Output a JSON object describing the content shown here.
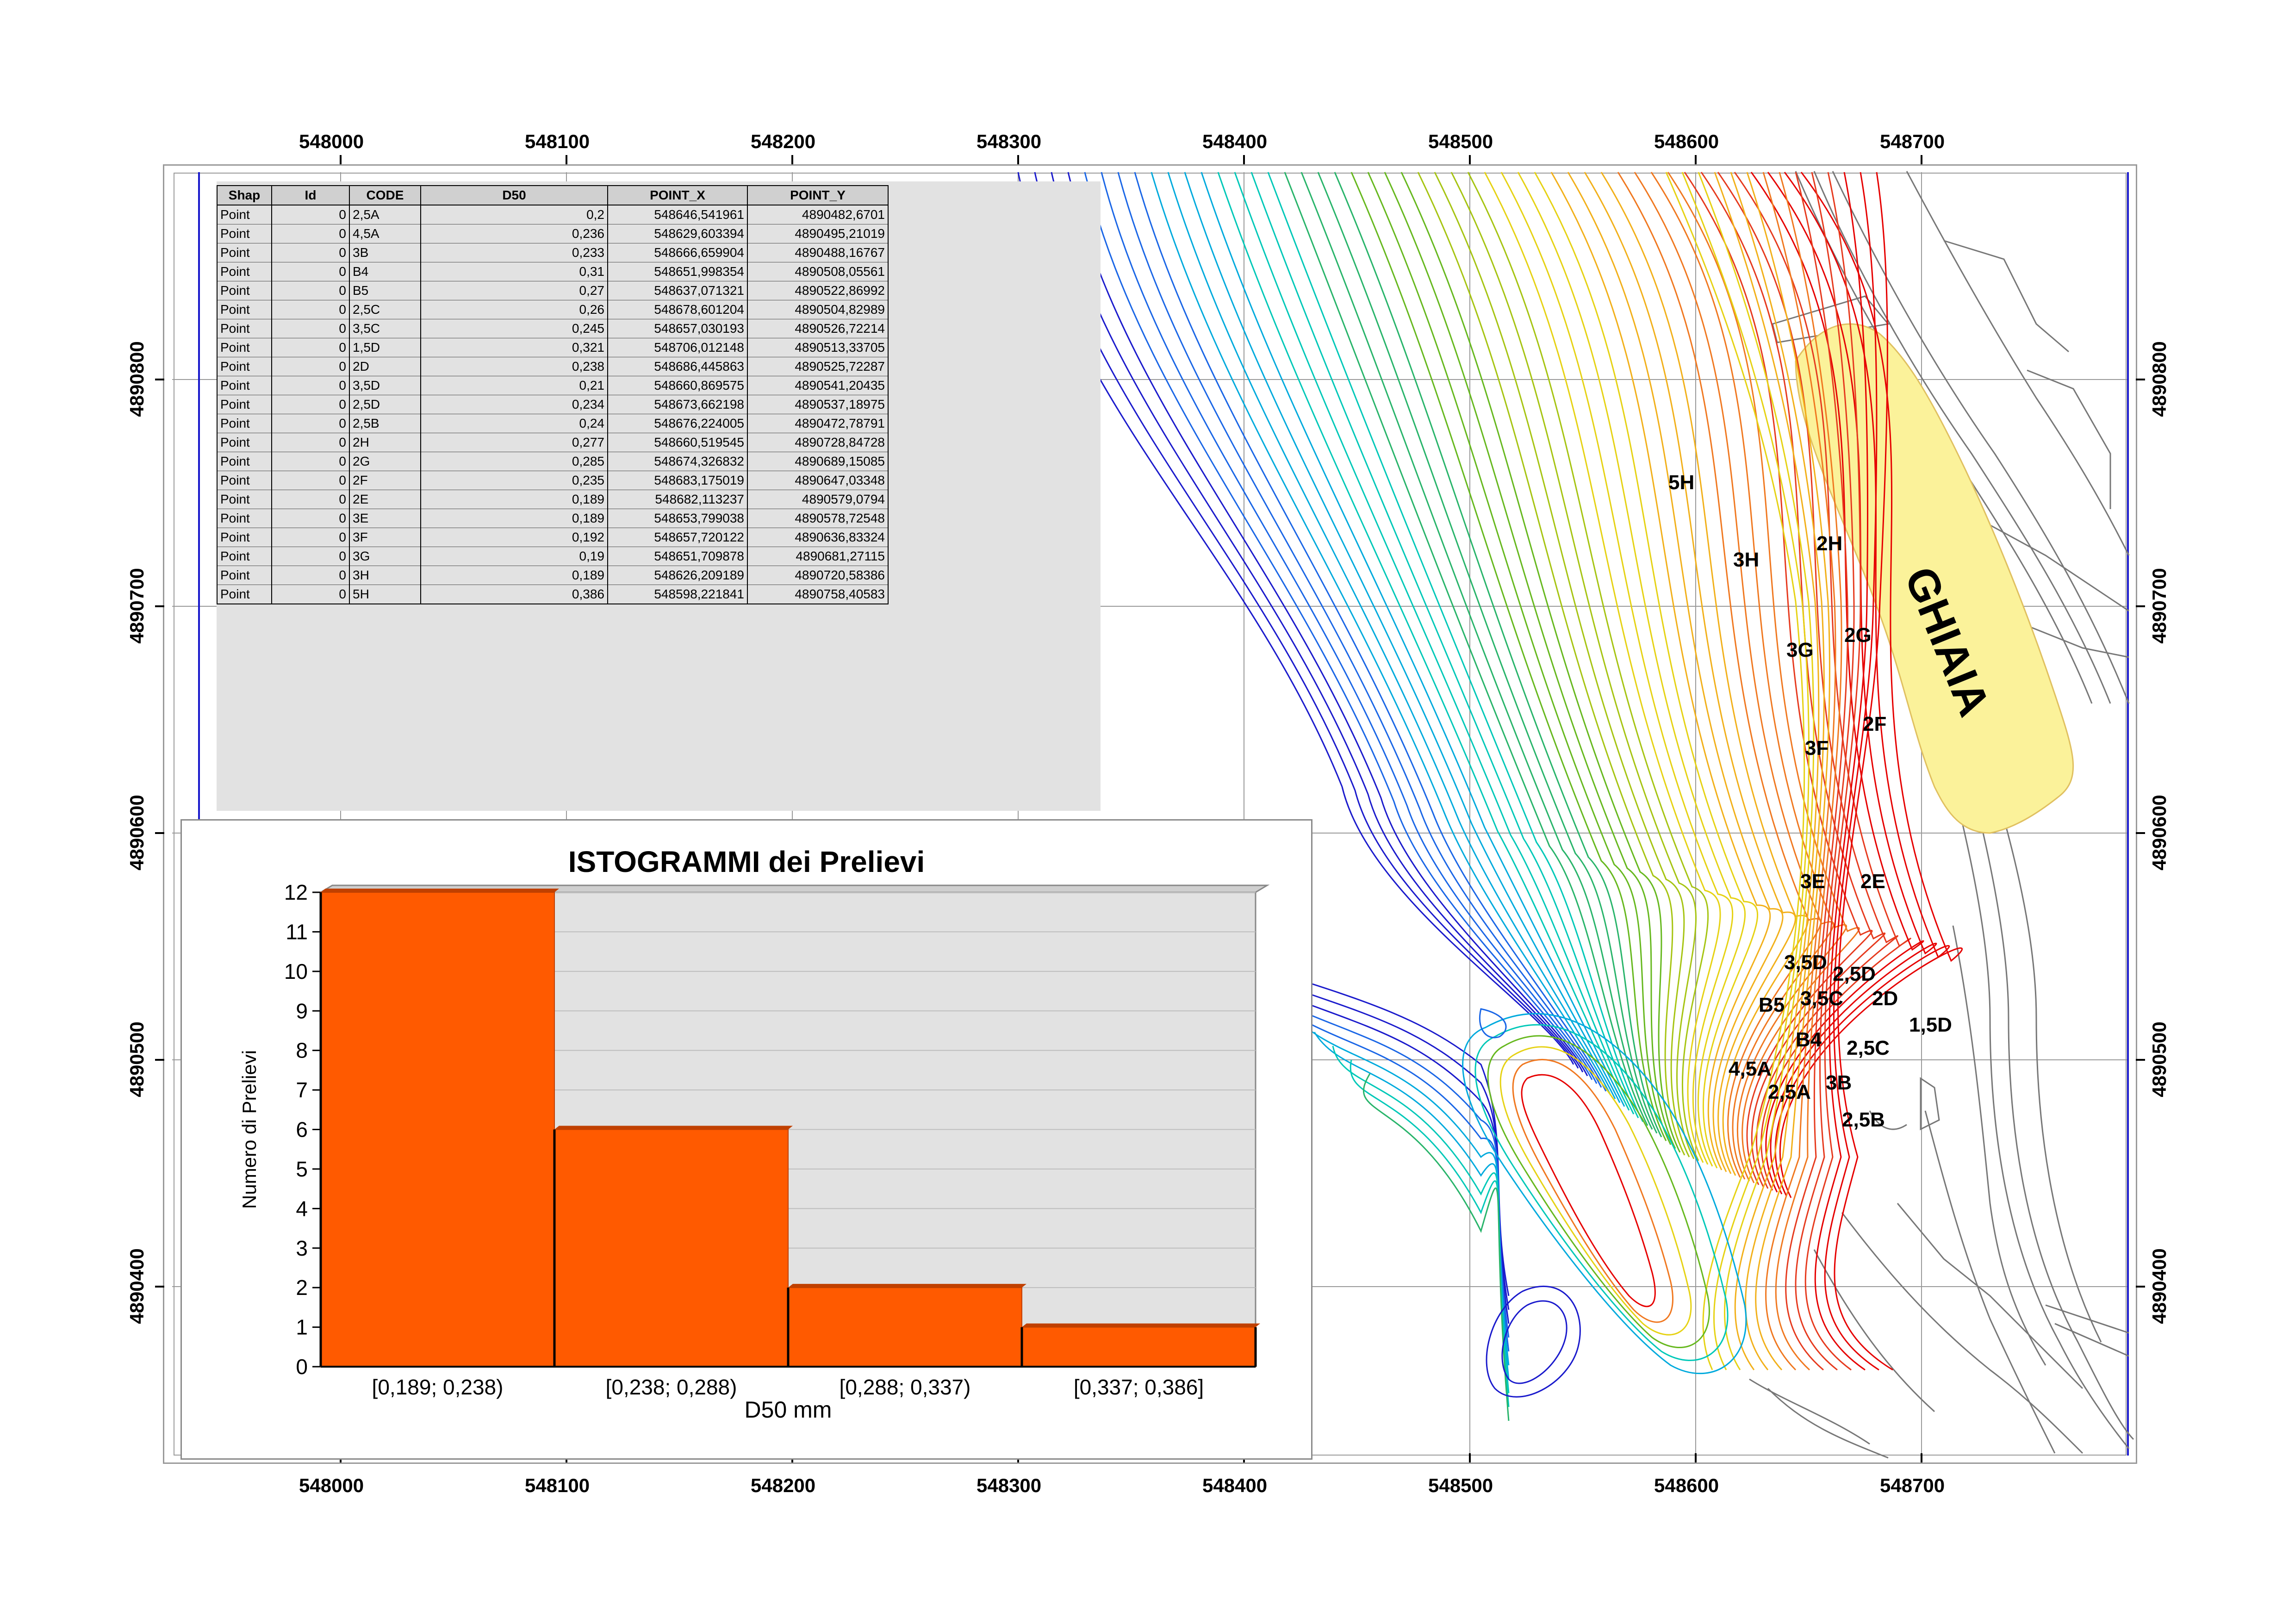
{
  "map": {
    "x_ticks": [
      "548000",
      "548100",
      "548200",
      "548300",
      "548400",
      "548500",
      "548600",
      "548700"
    ],
    "y_ticks": [
      "4890800",
      "4890700",
      "4890600",
      "4890500",
      "4890400"
    ],
    "area_label": "GHIAIA",
    "area_color": "#fbf29a",
    "sample_labels": [
      "5H",
      "3H",
      "2H",
      "3G",
      "2G",
      "3F",
      "2F",
      "3E",
      "2E",
      "3,5D",
      "2,5D",
      "B5",
      "3,5C",
      "2D",
      "B4",
      "1,5D",
      "2,5C",
      "4,5A",
      "2,5A",
      "3B",
      "2,5B"
    ],
    "contour_colors": [
      "#1a1acc",
      "#1a66e6",
      "#00aadd",
      "#00c8b8",
      "#28b46a",
      "#66b81e",
      "#a6c412",
      "#e6d214",
      "#f2b01a",
      "#f07820",
      "#e63a1e",
      "#e60000"
    ]
  },
  "attribute_table": {
    "columns": [
      "Shap",
      "Id",
      "CODE",
      "D50",
      "POINT_X",
      "POINT_Y"
    ],
    "rows": [
      [
        "Point",
        "0",
        "2,5A",
        "0,2",
        "548646,541961",
        "4890482,6701"
      ],
      [
        "Point",
        "0",
        "4,5A",
        "0,236",
        "548629,603394",
        "4890495,21019"
      ],
      [
        "Point",
        "0",
        "3B",
        "0,233",
        "548666,659904",
        "4890488,16767"
      ],
      [
        "Point",
        "0",
        "B4",
        "0,31",
        "548651,998354",
        "4890508,05561"
      ],
      [
        "Point",
        "0",
        "B5",
        "0,27",
        "548637,071321",
        "4890522,86992"
      ],
      [
        "Point",
        "0",
        "2,5C",
        "0,26",
        "548678,601204",
        "4890504,82989"
      ],
      [
        "Point",
        "0",
        "3,5C",
        "0,245",
        "548657,030193",
        "4890526,72214"
      ],
      [
        "Point",
        "0",
        "1,5D",
        "0,321",
        "548706,012148",
        "4890513,33705"
      ],
      [
        "Point",
        "0",
        "2D",
        "0,238",
        "548686,445863",
        "4890525,72287"
      ],
      [
        "Point",
        "0",
        "3,5D",
        "0,21",
        "548660,869575",
        "4890541,20435"
      ],
      [
        "Point",
        "0",
        "2,5D",
        "0,234",
        "548673,662198",
        "4890537,18975"
      ],
      [
        "Point",
        "0",
        "2,5B",
        "0,24",
        "548676,224005",
        "4890472,78791"
      ],
      [
        "Point",
        "0",
        "2H",
        "0,277",
        "548660,519545",
        "4890728,84728"
      ],
      [
        "Point",
        "0",
        "2G",
        "0,285",
        "548674,326832",
        "4890689,15085"
      ],
      [
        "Point",
        "0",
        "2F",
        "0,235",
        "548683,175019",
        "4890647,03348"
      ],
      [
        "Point",
        "0",
        "2E",
        "0,189",
        "548682,113237",
        "4890579,0794"
      ],
      [
        "Point",
        "0",
        "3E",
        "0,189",
        "548653,799038",
        "4890578,72548"
      ],
      [
        "Point",
        "0",
        "3F",
        "0,192",
        "548657,720122",
        "4890636,83324"
      ],
      [
        "Point",
        "0",
        "3G",
        "0,19",
        "548651,709878",
        "4890681,27115"
      ],
      [
        "Point",
        "0",
        "3H",
        "0,189",
        "548626,209189",
        "4890720,58386"
      ],
      [
        "Point",
        "0",
        "5H",
        "0,386",
        "548598,221841",
        "4890758,40583"
      ]
    ]
  },
  "chart_data": {
    "type": "bar",
    "title": "ISTOGRAMMI dei Prelievi",
    "xlabel": "D50 mm",
    "ylabel": "Numero di Prelievi",
    "categories": [
      "[0,189; 0,238)",
      "[0,238; 0,288)",
      "[0,288; 0,337)",
      "[0,337; 0,386]"
    ],
    "values": [
      12,
      6,
      2,
      1
    ],
    "ylim": [
      0,
      12
    ],
    "yticks": [
      "0",
      "1",
      "2",
      "3",
      "4",
      "5",
      "6",
      "7",
      "8",
      "9",
      "10",
      "11",
      "12"
    ],
    "bar_color": "#ff5a00",
    "plot_background": "#e2e2e2",
    "grid": true
  }
}
